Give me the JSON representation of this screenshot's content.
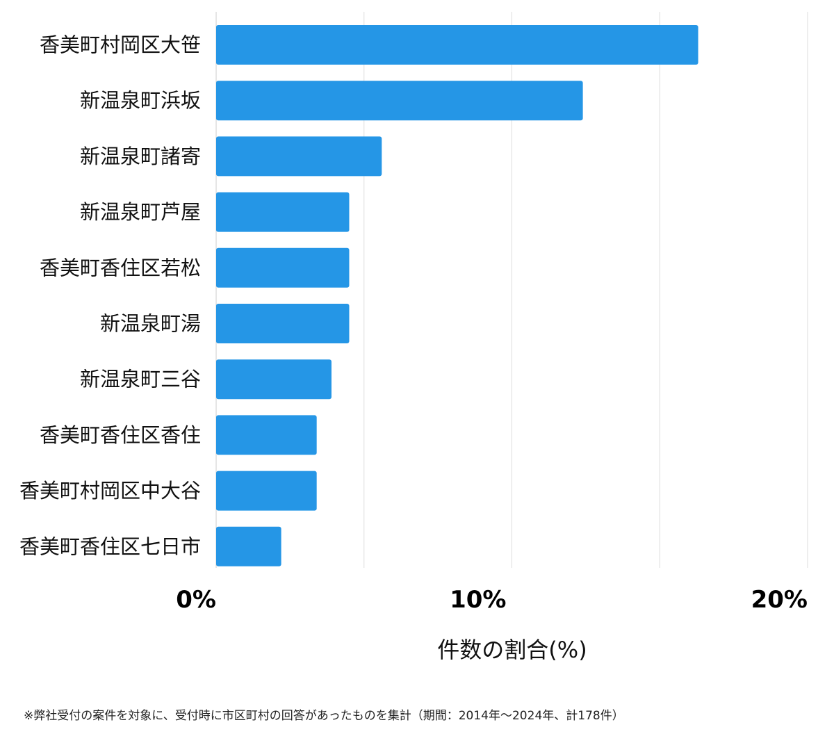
{
  "chart_data": {
    "type": "bar",
    "orientation": "horizontal",
    "categories": [
      "香美町村岡区大笹",
      "新温泉町浜坂",
      "新温泉町諸寄",
      "新温泉町芦屋",
      "香美町香住区若松",
      "新温泉町湯",
      "新温泉町三谷",
      "香美町香住区香住",
      "香美町村岡区中大谷",
      "香美町香住区七日市"
    ],
    "values": [
      16.3,
      12.4,
      5.6,
      4.5,
      4.5,
      4.5,
      3.9,
      3.4,
      3.4,
      2.2
    ],
    "xlim": [
      0,
      20
    ],
    "ticks": [
      0,
      10,
      20
    ],
    "tick_labels": [
      "0%",
      "10%",
      "20%"
    ],
    "xlabel": "件数の割合(%)",
    "grid": true,
    "bar_color": "#2596e6",
    "grid_color": "#dddddd"
  },
  "footnote": "※弊社受付の案件を対象に、受付時に市区町村の回答があったものを集計（期間：2014年～2024年、計178件）"
}
